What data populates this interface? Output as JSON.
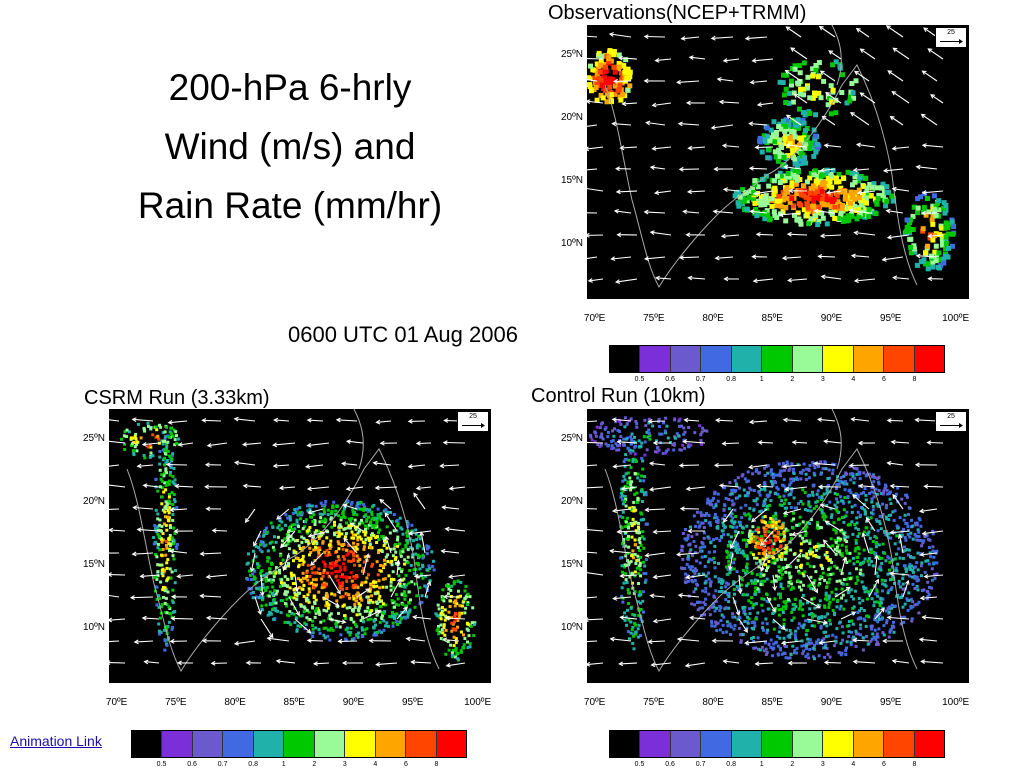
{
  "title": {
    "line1": "200-hPa 6-hrly",
    "line2": "Wind (m/s) and",
    "line3": "Rain Rate (mm/hr)"
  },
  "datetime": "0600 UTC 01 Aug 2006",
  "animation_link": "Animation Link",
  "panels": {
    "observations": {
      "title": "Observations(NCEP+TRMM)",
      "reference_vector": "25"
    },
    "cs_rm": {
      "title": "CSRM Run (3.33km)",
      "reference_vector": "25"
    },
    "control": {
      "title": "Control Run (10km)",
      "reference_vector": "25"
    }
  },
  "latitude_labels": [
    "25ºN",
    "20ºN",
    "15ºN",
    "10ºN"
  ],
  "longitude_labels": [
    "70ºE",
    "75ºE",
    "80ºE",
    "85ºE",
    "90ºE",
    "95ºE",
    "100ºE"
  ],
  "colorbar": {
    "colors": [
      "#000000",
      "#7b2fd9",
      "#6a5acd",
      "#4169e1",
      "#20b2aa",
      "#00c800",
      "#98fb98",
      "#ffff00",
      "#ffa500",
      "#ff4500",
      "#ff0000"
    ],
    "labels": [
      "0.5",
      "0.6",
      "0.7",
      "0.8",
      "1",
      "2",
      "3",
      "4",
      "6",
      "8"
    ]
  }
}
